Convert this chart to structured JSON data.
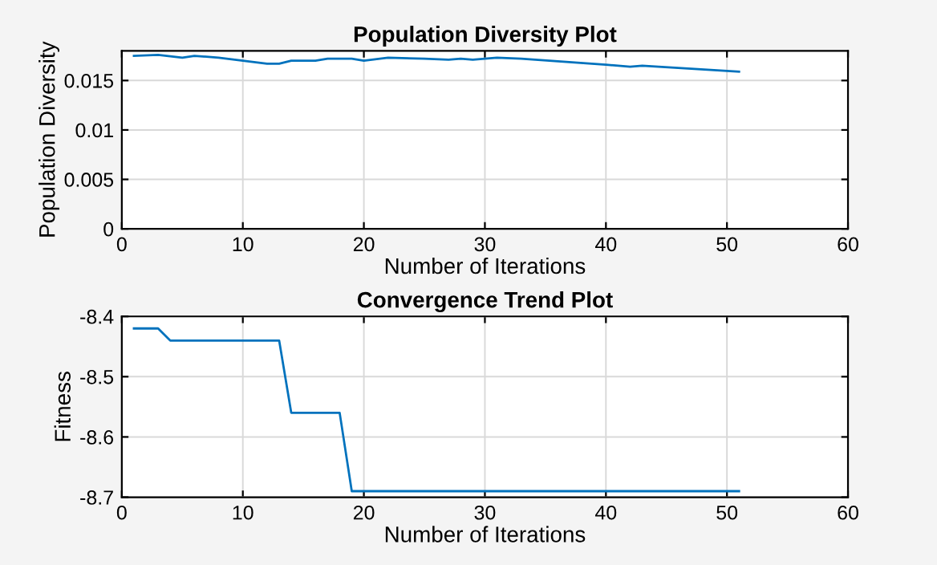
{
  "chart_data": [
    {
      "type": "line",
      "title": "Population Diversity Plot",
      "xlabel": "Number of Iterations",
      "ylabel": "Population Diversity",
      "x": [
        1,
        3,
        5,
        6,
        8,
        10,
        12,
        13,
        14,
        16,
        17,
        19,
        20,
        22,
        25,
        27,
        28,
        29,
        31,
        33,
        40,
        42,
        43,
        51
      ],
      "series": [
        {
          "color": "#0072bd",
          "values": [
            0.0175,
            0.0176,
            0.0173,
            0.0175,
            0.0173,
            0.017,
            0.0167,
            0.0167,
            0.017,
            0.017,
            0.0172,
            0.0172,
            0.017,
            0.0173,
            0.0172,
            0.0171,
            0.0172,
            0.0171,
            0.0173,
            0.0172,
            0.0166,
            0.0164,
            0.0165,
            0.0159
          ]
        }
      ],
      "xlim": [
        0,
        60
      ],
      "xticks": [
        0,
        10,
        20,
        30,
        40,
        50,
        60
      ],
      "ylim": [
        0,
        0.018
      ],
      "yticks": [
        0,
        0.005,
        0.01,
        0.015
      ],
      "grid": true
    },
    {
      "type": "line",
      "title": "Convergence Trend Plot",
      "xlabel": "Number of Iterations",
      "ylabel": "Fitness",
      "x": [
        1,
        3,
        4,
        13,
        14,
        18,
        19,
        51
      ],
      "series": [
        {
          "color": "#0072bd",
          "values": [
            -8.42,
            -8.42,
            -8.44,
            -8.44,
            -8.56,
            -8.56,
            -8.69,
            -8.69
          ]
        }
      ],
      "xlim": [
        0,
        60
      ],
      "xticks": [
        0,
        10,
        20,
        30,
        40,
        50,
        60
      ],
      "ylim": [
        -8.7,
        -8.4
      ],
      "yticks": [
        -8.7,
        -8.6,
        -8.5,
        -8.4
      ],
      "grid": true
    }
  ]
}
